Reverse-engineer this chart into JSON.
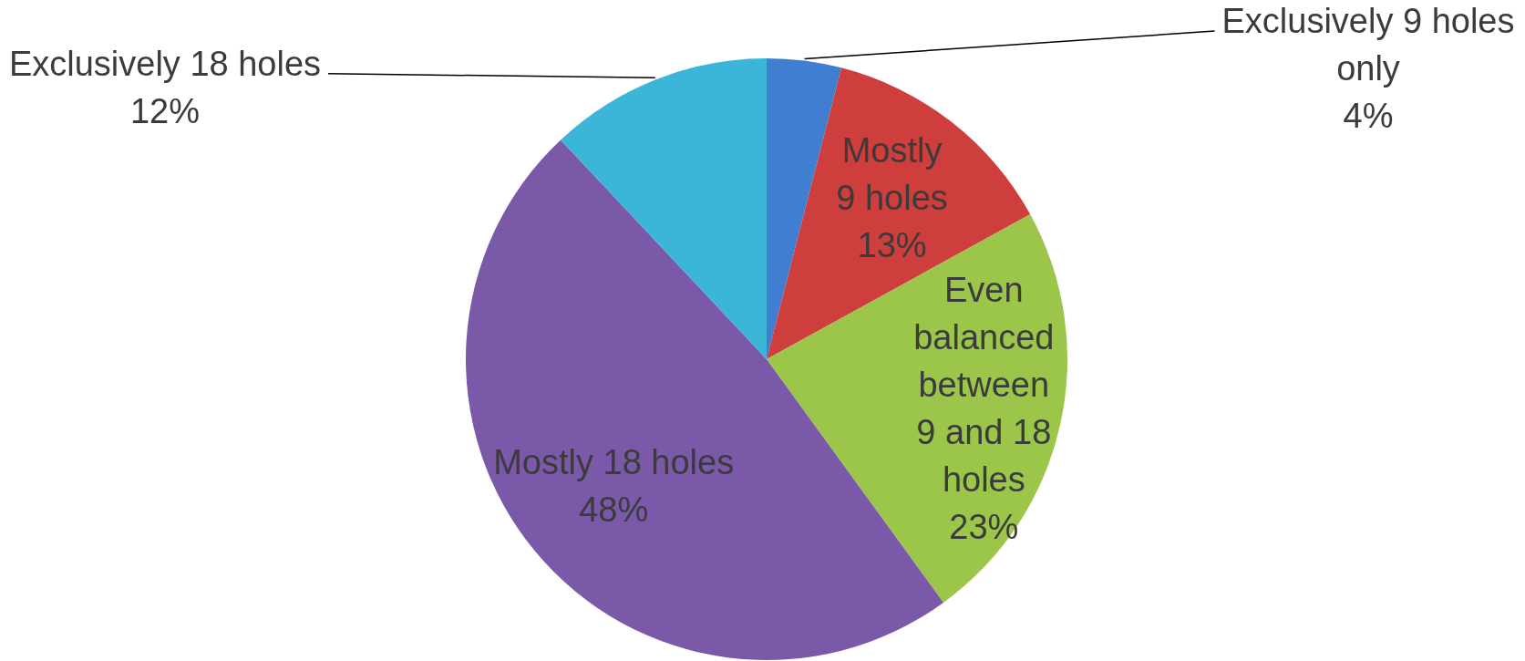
{
  "chart_data": {
    "type": "pie",
    "categories": [
      "Exclusively 9 holes only",
      "Mostly 9 holes",
      "Even balanced between 9 and 18 holes",
      "Mostly 18 holes",
      "Exclusively 18 holes"
    ],
    "values": [
      4,
      13,
      23,
      48,
      12
    ],
    "value_labels": [
      "4%",
      "13%",
      "23%",
      "48%",
      "12%"
    ],
    "colors": [
      "#3f7ed0",
      "#cd3e3c",
      "#9bc64a",
      "#7a59a8",
      "#3bb6d8"
    ]
  }
}
